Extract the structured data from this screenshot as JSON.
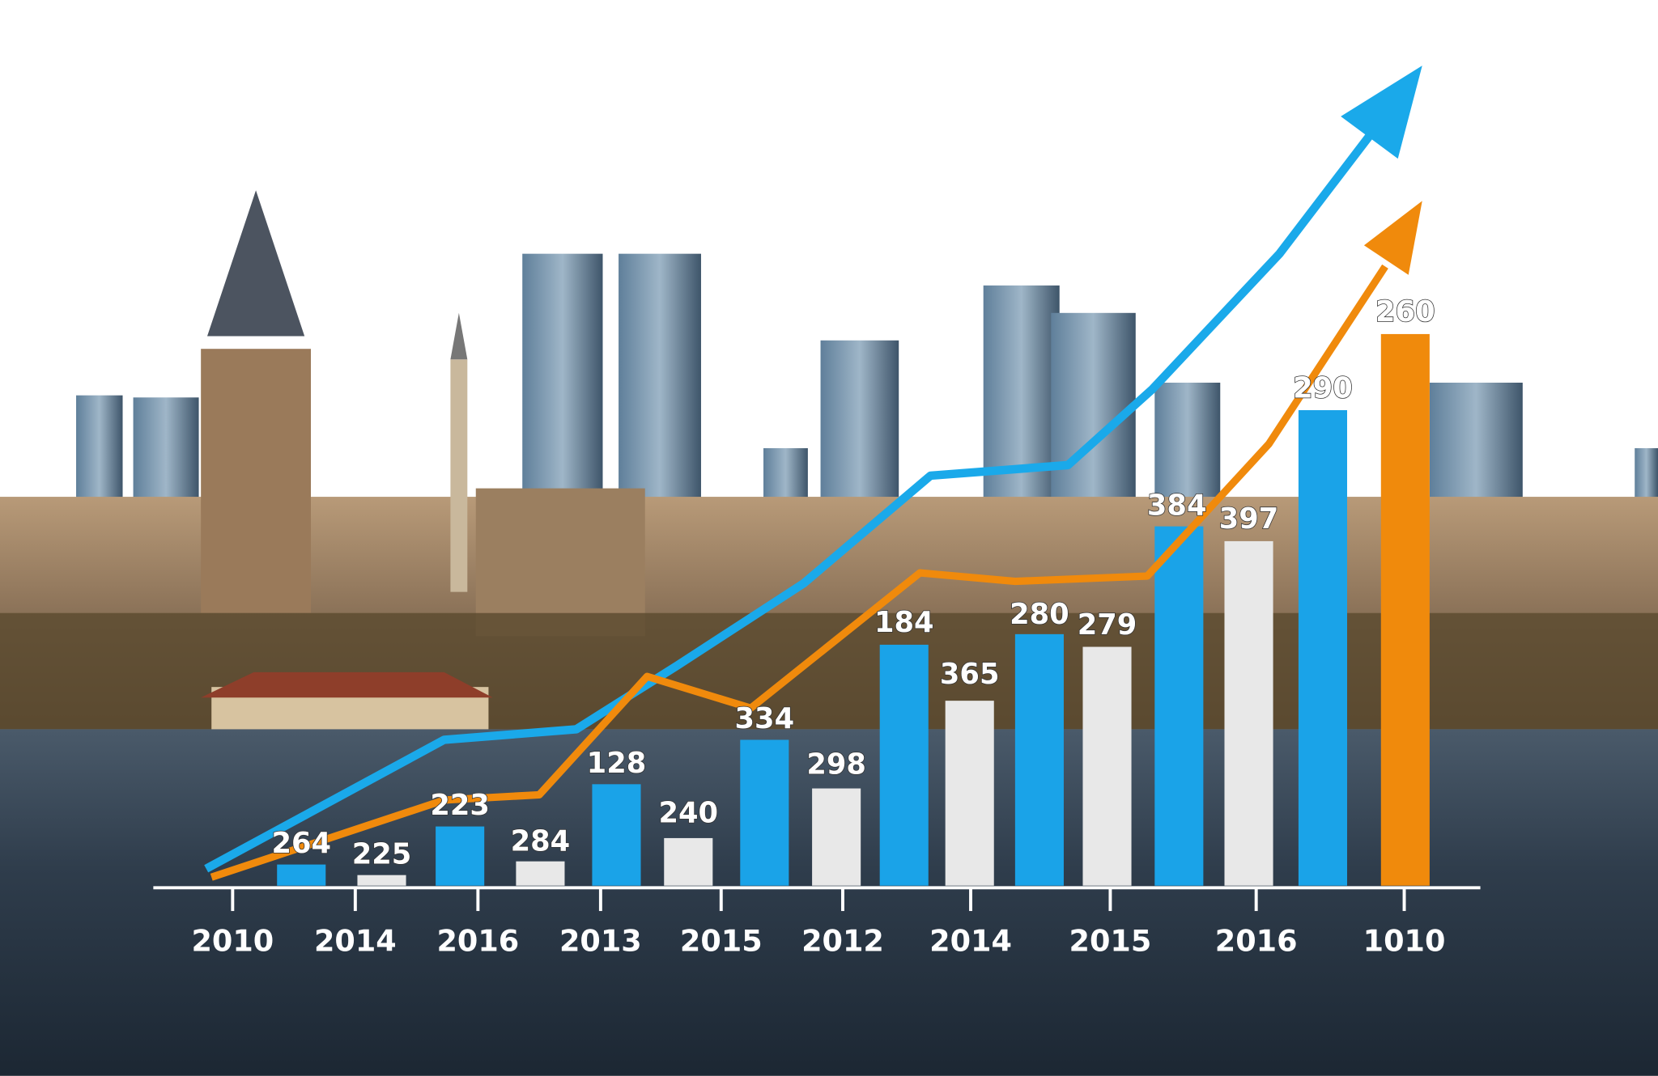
{
  "bar_labels": [
    "264",
    "225",
    "223",
    "284",
    "128",
    "240",
    "334",
    "298",
    "184",
    "365",
    "280",
    "279",
    "384",
    "397",
    "290",
    "260"
  ],
  "axis_labels": [
    "2010",
    "2014",
    "2016",
    "2013",
    "2015",
    "2012",
    "2014",
    "2015",
    "2016",
    "1010"
  ]
}
